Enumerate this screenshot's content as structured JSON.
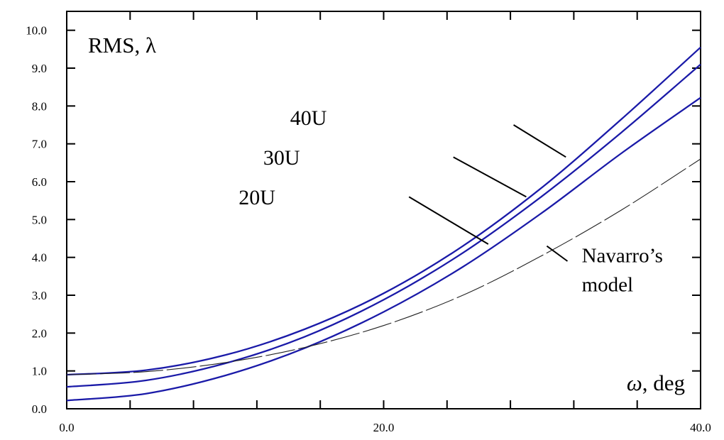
{
  "chart_data": {
    "type": "line",
    "title": "",
    "ylabel": "RMS, λ",
    "xlabel_symbol": "ω",
    "xlabel_unit": ", deg",
    "xlim": [
      0,
      40
    ],
    "ylim": [
      0,
      10.5
    ],
    "x_ticks": [
      "0.0",
      "20.0",
      "40.0"
    ],
    "y_ticks": [
      "0.0",
      "1.0",
      "2.0",
      "3.0",
      "4.0",
      "5.0",
      "6.0",
      "7.0",
      "8.0",
      "9.0",
      "10.0"
    ],
    "grid": false,
    "series": [
      {
        "name": "40U",
        "color": "#1a1aa8",
        "style": "solid",
        "x": [
          0,
          5,
          10,
          15,
          20,
          25,
          30,
          35,
          40
        ],
        "y": [
          0.9,
          1.02,
          1.42,
          2.1,
          3.05,
          4.3,
          5.85,
          7.65,
          9.55
        ]
      },
      {
        "name": "30U",
        "color": "#1a1aa8",
        "style": "solid",
        "x": [
          0,
          5,
          10,
          15,
          20,
          25,
          30,
          35,
          40
        ],
        "y": [
          0.58,
          0.75,
          1.2,
          1.9,
          2.88,
          4.12,
          5.62,
          7.3,
          9.1
        ]
      },
      {
        "name": "20U",
        "color": "#1a1aa8",
        "style": "solid",
        "x": [
          0,
          5,
          10,
          15,
          20,
          25,
          30,
          35,
          40
        ],
        "y": [
          0.22,
          0.4,
          0.88,
          1.6,
          2.56,
          3.75,
          5.18,
          6.75,
          8.22
        ]
      },
      {
        "name": "Navarro’s model",
        "color": "#222222",
        "style": "dashed",
        "x": [
          0,
          5,
          10,
          15,
          20,
          25,
          30,
          35,
          40
        ],
        "y": [
          0.9,
          0.98,
          1.22,
          1.62,
          2.2,
          3.0,
          4.05,
          5.25,
          6.6
        ]
      }
    ],
    "annotations": [
      {
        "series": "40U",
        "text": "40U",
        "text_x": 14.1,
        "text_y": 7.5,
        "line_from": [
          28.2,
          7.5
        ],
        "line_to": [
          31.5,
          6.65
        ]
      },
      {
        "series": "30U",
        "text": "30U",
        "text_x": 12.4,
        "text_y": 6.45,
        "line_from": [
          24.4,
          6.65
        ],
        "line_to": [
          29.0,
          5.6
        ]
      },
      {
        "series": "20U",
        "text": "20U",
        "text_x": 10.85,
        "text_y": 5.4,
        "line_from": [
          21.6,
          5.6
        ],
        "line_to": [
          26.6,
          4.35
        ]
      },
      {
        "series": "Navarro’s model",
        "text_lines": [
          "Navarro’s",
          "model"
        ],
        "text_x": 32.5,
        "text_y": 3.87,
        "line_from": [
          31.6,
          3.9
        ],
        "line_to": [
          30.3,
          4.3
        ]
      }
    ]
  }
}
